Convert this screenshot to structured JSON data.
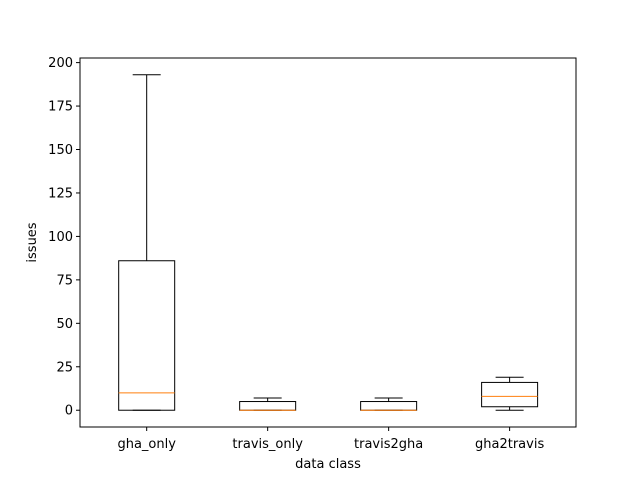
{
  "chart_data": {
    "type": "boxplot",
    "title": "",
    "xlabel": "data class",
    "ylabel": "issues",
    "ylim": [
      -9.65,
      202.65
    ],
    "yticks": [
      0,
      25,
      50,
      75,
      100,
      125,
      150,
      175,
      200
    ],
    "grid": false,
    "categories": [
      "gha_only",
      "travis_only",
      "travis2gha",
      "gha2travis"
    ],
    "boxes": [
      {
        "category": "gha_only",
        "whisker_low": 0,
        "q1": 0,
        "median": 10,
        "q3": 86,
        "whisker_high": 193
      },
      {
        "category": "travis_only",
        "whisker_low": 0,
        "q1": 0,
        "median": 0,
        "q3": 5,
        "whisker_high": 7
      },
      {
        "category": "travis2gha",
        "whisker_low": 0,
        "q1": 0,
        "median": 0,
        "q3": 5,
        "whisker_high": 7
      },
      {
        "category": "gha2travis",
        "whisker_low": 0,
        "q1": 2,
        "median": 8,
        "q3": 16,
        "whisker_high": 19
      }
    ],
    "colors": {
      "box": "#000000",
      "median": "#ff7f0e",
      "axes": "#000000",
      "background": "#ffffff"
    }
  }
}
